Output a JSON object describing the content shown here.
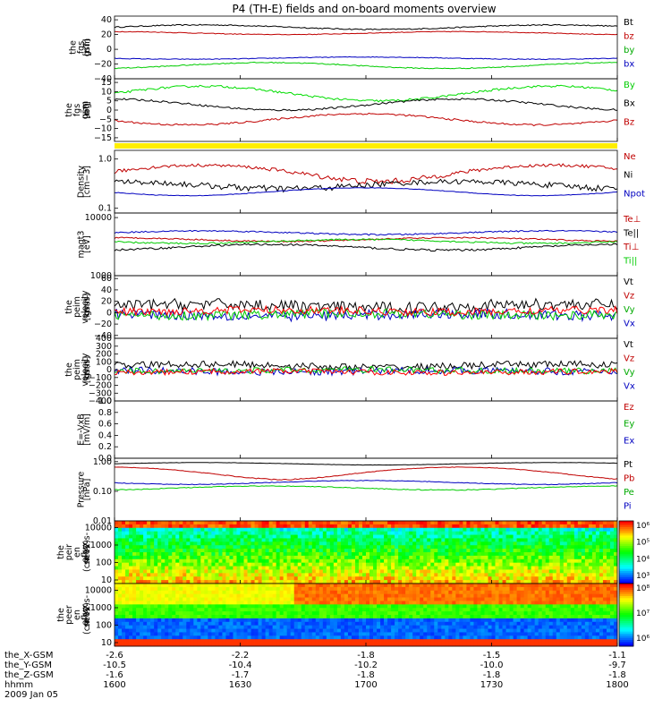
{
  "title": "P4 (TH-E) fields and on-board moments overview",
  "footer": {
    "rows": [
      {
        "label": "the_X-GSM",
        "values": [
          "-2.6",
          "-2.2",
          "-1.8",
          "-1.5",
          "-1.1"
        ]
      },
      {
        "label": "the_Y-GSM",
        "values": [
          "-10.5",
          "-10.4",
          "-10.2",
          "-10.0",
          "-9.7"
        ]
      },
      {
        "label": "the_Z-GSM",
        "values": [
          "-1.6",
          "-1.7",
          "-1.8",
          "-1.8",
          "-1.8"
        ]
      },
      {
        "label": "hhmm",
        "values": [
          "1600",
          "1630",
          "1700",
          "1730",
          "1800"
        ]
      }
    ],
    "date": "2009 Jan 05"
  },
  "chart_data": [
    {
      "type": "line",
      "id": "fgs_gsm",
      "ylabel": [
        "the",
        "fgs",
        "gsm",
        "[nT]"
      ],
      "ticks": [
        "40",
        "20",
        "0",
        "−20",
        "−40"
      ],
      "tick_values": [
        40,
        20,
        0,
        -20,
        -40
      ],
      "ylim": [
        -40,
        45
      ],
      "series": [
        {
          "name": "Bt",
          "color": "#000000",
          "base": 30,
          "amp": 3,
          "noise": 0.8
        },
        {
          "name": "bz",
          "color": "#c00000",
          "base": 22,
          "amp": 2,
          "noise": 0.5
        },
        {
          "name": "by",
          "color": "#0000c0",
          "base": -12,
          "amp": 1.5,
          "noise": 0.5
        },
        {
          "name": "bx",
          "color": "#00cc00",
          "base": -22,
          "amp": 4,
          "noise": 0.7
        }
      ],
      "legend": [
        {
          "label": "Bt",
          "color": "#000000"
        },
        {
          "label": "bz",
          "color": "#c00000"
        },
        {
          "label": "by",
          "color": "#00aa00"
        },
        {
          "label": "bx",
          "color": "#0000c0"
        }
      ]
    },
    {
      "type": "line",
      "id": "fgs_gse",
      "ylabel": [
        "the",
        "fgs",
        "gsm",
        "-bg",
        "[nT]"
      ],
      "ticks": [
        "15",
        "10",
        "5",
        "0",
        "−5",
        "−10",
        "−15"
      ],
      "tick_values": [
        15,
        10,
        5,
        0,
        -5,
        -10,
        -15
      ],
      "ylim": [
        -17,
        17
      ],
      "series": [
        {
          "name": "By",
          "color": "#00dd00",
          "base": 9,
          "amp": 4,
          "noise": 0.6
        },
        {
          "name": "Bx",
          "color": "#000000",
          "base": 3,
          "amp": 3,
          "noise": 0.5
        },
        {
          "name": "Bz",
          "color": "#c00000",
          "base": -5,
          "amp": 3,
          "noise": 0.5
        }
      ],
      "legend": [
        {
          "label": "By",
          "color": "#00cc00"
        },
        {
          "label": "Bx",
          "color": "#000000"
        },
        {
          "label": "Bz",
          "color": "#c00000"
        }
      ]
    },
    {
      "type": "line",
      "id": "density",
      "log": true,
      "ylabel": [
        "Density",
        "[cm−3]"
      ],
      "ticks": [
        "1.0",
        "0.1"
      ],
      "tick_values": [
        1.0,
        0.1
      ],
      "ylim": [
        0.08,
        1.5
      ],
      "series": [
        {
          "name": "Ne",
          "color": "#c00000",
          "base": 0.55,
          "amp": 0.2,
          "noise": 0.05
        },
        {
          "name": "Ni",
          "color": "#000000",
          "base": 0.3,
          "amp": 0.05,
          "noise": 0.04
        },
        {
          "name": "Npot",
          "color": "#0000c0",
          "base": 0.22,
          "amp": 0.04,
          "noise": 0.003
        }
      ],
      "legend": [
        {
          "label": "Ne",
          "color": "#c00000"
        },
        {
          "label": "Ni",
          "color": "#000000"
        },
        {
          "label": "Npot",
          "color": "#0000c0"
        }
      ]
    },
    {
      "type": "line",
      "id": "temperature",
      "log": true,
      "ylabel": [
        "magt3",
        "[eV]"
      ],
      "ticks": [
        "10000",
        "1000"
      ],
      "tick_values": [
        10000,
        1000
      ],
      "ylim": [
        1000,
        12000
      ],
      "series": [
        {
          "name": "Te⊥",
          "color": "#0000c0",
          "base": 5500,
          "amp": 400,
          "noise": 150
        },
        {
          "name": "Te||",
          "color": "#c00000",
          "base": 4200,
          "amp": 300,
          "noise": 120
        },
        {
          "name": "Ti⊥",
          "color": "#00cc00",
          "base": 3900,
          "amp": 300,
          "noise": 120
        },
        {
          "name": "Ti||",
          "color": "#000000",
          "base": 3100,
          "amp": 350,
          "noise": 120
        }
      ],
      "legend": [
        {
          "label": "Te⊥",
          "color": "#c00000"
        },
        {
          "label": "Te||",
          "color": "#000000"
        },
        {
          "label": "Ti⊥",
          "color": "#c00000"
        },
        {
          "label": "Ti||",
          "color": "#00cc00"
        }
      ]
    },
    {
      "type": "line",
      "id": "peim_velocity",
      "ylabel": [
        "the",
        "peim",
        "velocity",
        "gsm",
        "[km/s]"
      ],
      "ticks": [
        "60",
        "40",
        "20",
        "0",
        "−20",
        "−40"
      ],
      "tick_values": [
        60,
        40,
        20,
        0,
        -20,
        -40
      ],
      "ylim": [
        -45,
        65
      ],
      "series": [
        {
          "name": "Vt",
          "color": "#000000",
          "base": 12,
          "amp": 3,
          "noise": 10
        },
        {
          "name": "Vx",
          "color": "#0000c0",
          "base": -4,
          "amp": 2,
          "noise": 9
        },
        {
          "name": "Vy",
          "color": "#00cc00",
          "base": -3,
          "amp": 2,
          "noise": 8
        },
        {
          "name": "Vz",
          "color": "#ff0000",
          "base": 3,
          "amp": 2,
          "noise": 7
        }
      ],
      "legend": [
        {
          "label": "Vt",
          "color": "#000000"
        },
        {
          "label": "Vz",
          "color": "#c00000"
        },
        {
          "label": "Vy",
          "color": "#00aa00"
        },
        {
          "label": "Vx",
          "color": "#0000c0"
        }
      ]
    },
    {
      "type": "line",
      "id": "peir_velocity",
      "ylabel": [
        "the",
        "peim",
        "velocity",
        "gsm",
        "[km/s]"
      ],
      "ticks": [
        "400",
        "300",
        "200",
        "100",
        "0",
        "−100",
        "−200",
        "−300",
        "−400"
      ],
      "tick_values": [
        400,
        300,
        200,
        100,
        0,
        -100,
        -200,
        -300,
        -400
      ],
      "ylim": [
        -400,
        400
      ],
      "series": [
        {
          "name": "Vt",
          "color": "#000000",
          "base": 50,
          "amp": 20,
          "noise": 45
        },
        {
          "name": "Vx",
          "color": "#0000c0",
          "base": -20,
          "amp": 10,
          "noise": 45
        },
        {
          "name": "Vy",
          "color": "#00cc00",
          "base": -10,
          "amp": 10,
          "noise": 40
        },
        {
          "name": "Vz",
          "color": "#ff0000",
          "base": -30,
          "amp": 10,
          "noise": 35
        }
      ],
      "legend": [
        {
          "label": "Vt",
          "color": "#000000"
        },
        {
          "label": "Vz",
          "color": "#c00000"
        },
        {
          "label": "Vy",
          "color": "#00aa00"
        },
        {
          "label": "Vx",
          "color": "#0000c0"
        }
      ]
    },
    {
      "type": "line",
      "id": "e_vxb",
      "ylabel": [
        "E=-VxB",
        "[mV/m]"
      ],
      "ticks": [
        "1.0",
        "0.8",
        "0.6",
        "0.4",
        "0.2",
        "0.0"
      ],
      "tick_values": [
        1.0,
        0.8,
        0.6,
        0.4,
        0.2,
        0.0
      ],
      "ylim": [
        0,
        1
      ],
      "series": [],
      "legend": [
        {
          "label": "Ez",
          "color": "#c00000"
        },
        {
          "label": "Ey",
          "color": "#00aa00"
        },
        {
          "label": "Ex",
          "color": "#0000c0"
        }
      ]
    },
    {
      "type": "line",
      "id": "pressure",
      "log": true,
      "ylabel": [
        "Pressure",
        "[nPa]"
      ],
      "ticks": [
        "1.00",
        "0.10",
        "0.01"
      ],
      "tick_values": [
        1.0,
        0.1,
        0.01
      ],
      "ylim": [
        0.01,
        1.3
      ],
      "series": [
        {
          "name": "Pt",
          "color": "#000000",
          "base": 0.85,
          "amp": 0.08,
          "noise": 0.01
        },
        {
          "name": "Pb",
          "color": "#c00000",
          "base": 0.45,
          "amp": 0.2,
          "noise": 0.01
        },
        {
          "name": "Pi",
          "color": "#0000c0",
          "base": 0.2,
          "amp": 0.03,
          "noise": 0.005
        },
        {
          "name": "Pe",
          "color": "#00cc00",
          "base": 0.13,
          "amp": 0.02,
          "noise": 0.004
        }
      ],
      "legend": [
        {
          "label": "Pt",
          "color": "#000000"
        },
        {
          "label": "Pb",
          "color": "#c00000"
        },
        {
          "label": "Pe",
          "color": "#00aa00"
        },
        {
          "label": "Pi",
          "color": "#0000c0"
        }
      ]
    },
    {
      "type": "heatmap",
      "id": "peir_en_eflux",
      "ylabel": [
        "the",
        "peir",
        "en",
        "eflux",
        "eV/",
        "(cm^2-s-",
        "sr-eV)"
      ],
      "ticks": [
        "10000",
        "1000",
        "100",
        "10"
      ],
      "tick_values": [
        10000,
        1000,
        100,
        10
      ],
      "colorbar_ticks": [
        "10⁶",
        "10⁵",
        "10⁴",
        "10³"
      ],
      "colormap": "rainbow",
      "pattern": "ion"
    },
    {
      "type": "heatmap",
      "id": "peer_en_eflux",
      "ylabel": [
        "the",
        "peer",
        "en",
        "eflux",
        "eV/",
        "(cm^2-s-",
        "sr-eV)"
      ],
      "ticks": [
        "10000",
        "1000",
        "100",
        "10"
      ],
      "tick_values": [
        10000,
        1000,
        100,
        10
      ],
      "colorbar_ticks": [
        "10⁸",
        "10⁷",
        "10⁶"
      ],
      "colormap": "rainbow",
      "pattern": "electron"
    }
  ]
}
